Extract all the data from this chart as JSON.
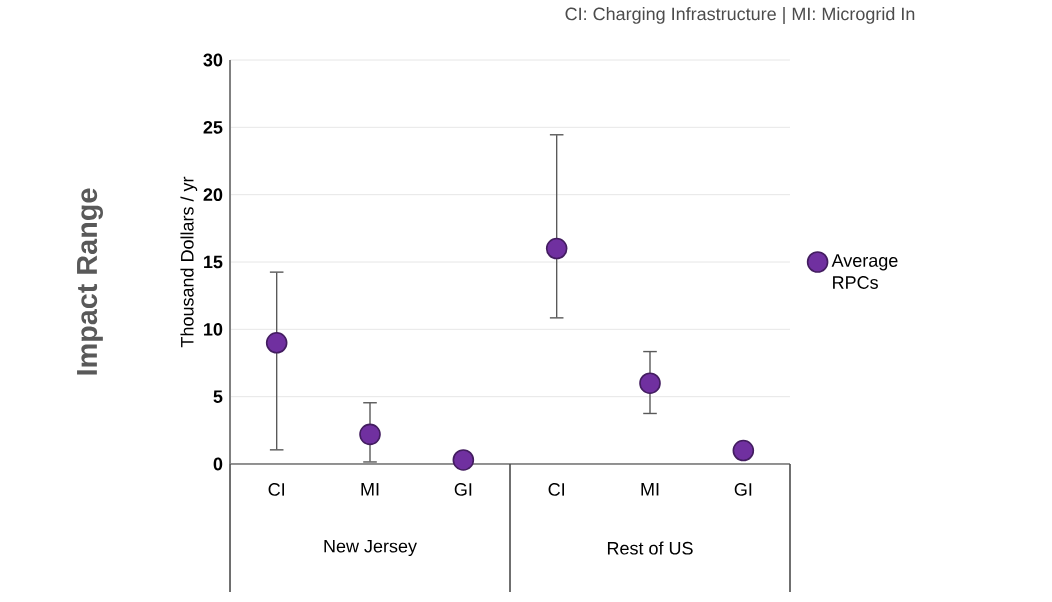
{
  "chart_data": {
    "type": "scatter",
    "ylabel": "Thousand Dollars / yr",
    "categories": [
      "CI",
      "MI",
      "GI",
      "CI",
      "MI",
      "GI"
    ],
    "series": [
      {
        "name": "Average RPCs",
        "color": "#7030a0",
        "values": [
          9,
          2.2,
          0.3,
          16,
          6,
          1
        ],
        "errors": [
          [
            1,
            14.3
          ],
          [
            0.1,
            4.6
          ],
          null,
          [
            10.8,
            24.5
          ],
          [
            3.7,
            8.4
          ],
          null
        ]
      }
    ],
    "ylim": [
      0,
      30
    ],
    "yticks": [
      0,
      5,
      10,
      15,
      20,
      25,
      30
    ],
    "grid": "y",
    "legend": "right",
    "annotations": [
      "CI: Charging Infrastructure   |   MI: Microgrid In",
      "New Jersey",
      "Rest of US",
      "Impact Range"
    ]
  }
}
